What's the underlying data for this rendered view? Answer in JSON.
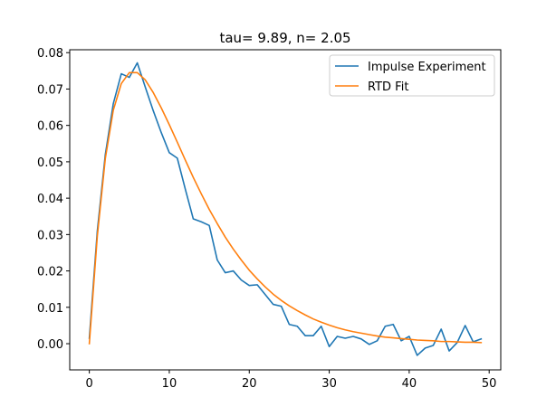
{
  "chart_data": {
    "type": "line",
    "title": "tau= 9.89, n= 2.05",
    "xlabel": "",
    "ylabel": "",
    "xlim": [
      -2.45,
      51.45
    ],
    "ylim": [
      -0.0072,
      0.0808
    ],
    "x_ticks": [
      0,
      10,
      20,
      30,
      40,
      50
    ],
    "x_tick_labels": [
      "0",
      "10",
      "20",
      "30",
      "40",
      "50"
    ],
    "y_ticks": [
      0.0,
      0.01,
      0.02,
      0.03,
      0.04,
      0.05,
      0.06,
      0.07,
      0.08
    ],
    "y_tick_labels": [
      "0.00",
      "0.01",
      "0.02",
      "0.03",
      "0.04",
      "0.05",
      "0.06",
      "0.07",
      "0.08"
    ],
    "grid": false,
    "legend_position": "top-right",
    "x": [
      0,
      1,
      2,
      3,
      4,
      5,
      6,
      7,
      8,
      9,
      10,
      11,
      12,
      13,
      14,
      15,
      16,
      17,
      18,
      19,
      20,
      21,
      22,
      23,
      24,
      25,
      26,
      27,
      28,
      29,
      30,
      31,
      32,
      33,
      34,
      35,
      36,
      37,
      38,
      39,
      40,
      41,
      42,
      43,
      44,
      45,
      46,
      47,
      48,
      49
    ],
    "series": [
      {
        "name": "Impulse Experiment",
        "color": "#1f77b4",
        "values": [
          0.0015,
          0.031,
          0.052,
          0.066,
          0.0742,
          0.0732,
          0.0772,
          0.0705,
          0.064,
          0.058,
          0.0525,
          0.051,
          0.0425,
          0.0343,
          0.0335,
          0.0325,
          0.023,
          0.0195,
          0.02,
          0.0175,
          0.016,
          0.0162,
          0.0135,
          0.0108,
          0.0103,
          0.0053,
          0.0048,
          0.0022,
          0.0022,
          0.0048,
          -0.0008,
          0.002,
          0.0015,
          0.002,
          0.0013,
          -0.0002,
          0.0008,
          0.0048,
          0.0053,
          0.0008,
          0.002,
          -0.0032,
          -0.0012,
          -0.0005,
          0.004,
          -0.002,
          0.0003,
          0.005,
          0.0005,
          0.0013
        ]
      },
      {
        "name": "RTD Fit",
        "color": "#ff7f0e",
        "values": [
          0.0,
          0.0296,
          0.0509,
          0.0642,
          0.0715,
          0.0745,
          0.0745,
          0.0725,
          0.069,
          0.0648,
          0.0602,
          0.0554,
          0.0505,
          0.0457,
          0.0412,
          0.0369,
          0.033,
          0.0293,
          0.026,
          0.023,
          0.0202,
          0.0178,
          0.0156,
          0.0136,
          0.0119,
          0.0104,
          0.0091,
          0.0079,
          0.0068,
          0.0059,
          0.0051,
          0.0044,
          0.0038,
          0.0033,
          0.0029,
          0.0025,
          0.0021,
          0.0018,
          0.0016,
          0.0014,
          0.0012,
          0.001,
          0.0009,
          0.0008,
          0.0006,
          0.0006,
          0.0005,
          0.0004,
          0.0004,
          0.0003
        ]
      }
    ]
  }
}
